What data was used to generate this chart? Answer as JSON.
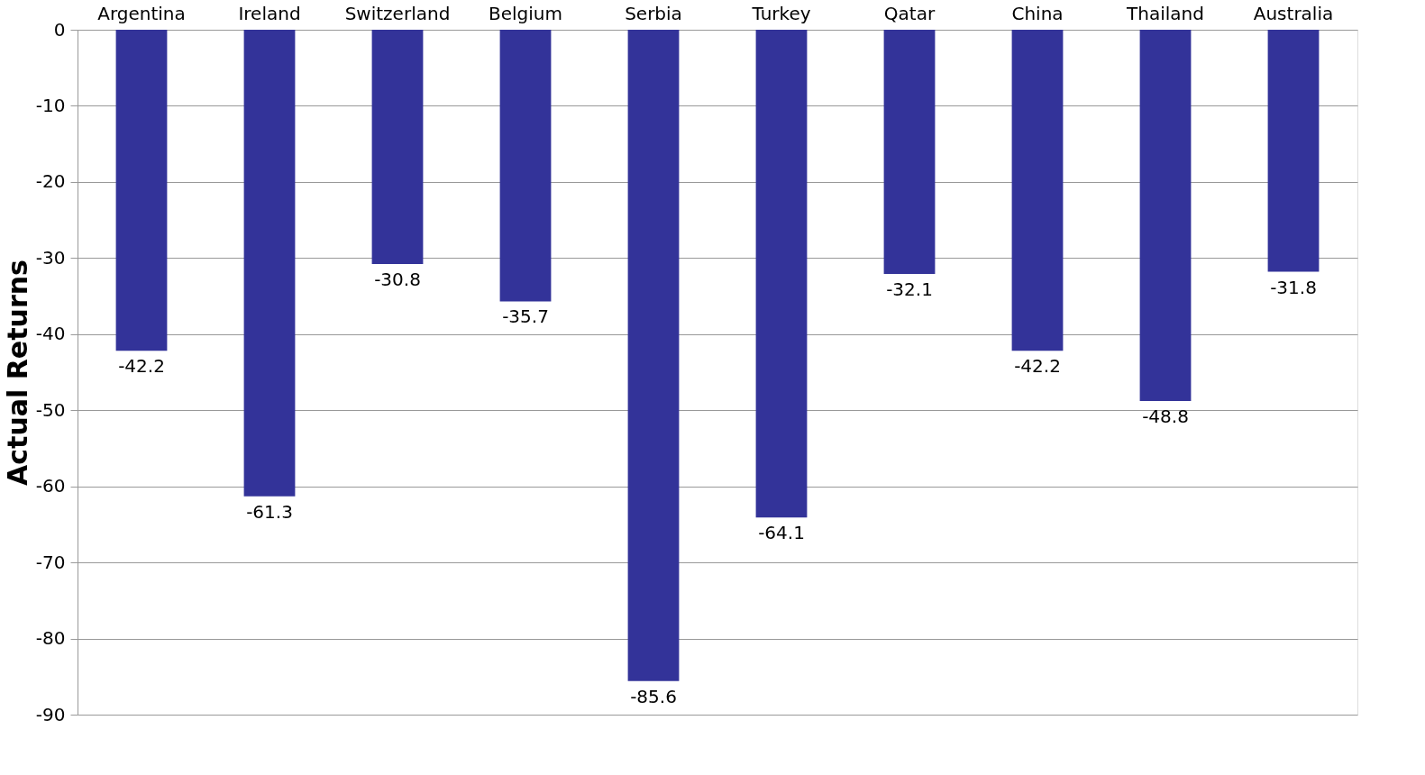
{
  "chart_data": {
    "type": "bar",
    "ylabel": "Actual Returns",
    "categories": [
      "Argentina",
      "Ireland",
      "Switzerland",
      "Belgium",
      "Serbia",
      "Turkey",
      "Qatar",
      "China",
      "Thailand",
      "Australia"
    ],
    "values": [
      -42.2,
      -61.3,
      -30.8,
      -35.7,
      -85.6,
      -64.1,
      -32.1,
      -42.2,
      -48.8,
      -31.8
    ],
    "color": "#333399",
    "ylim": [
      -90,
      0
    ],
    "yticks": [
      0,
      -10,
      -20,
      -30,
      -40,
      -50,
      -60,
      -70,
      -80,
      -90
    ],
    "grid": "y",
    "data_labels": true
  }
}
